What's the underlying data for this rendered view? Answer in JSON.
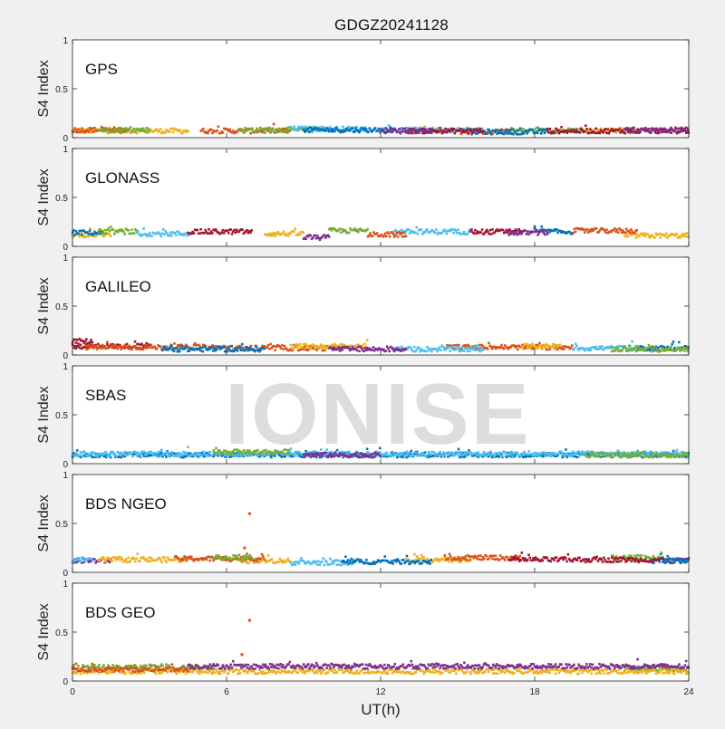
{
  "chart_data": {
    "type": "scatter",
    "title": "GDGZ20241128",
    "watermark": "IONISE",
    "xlabel": "UT(h)",
    "xlim": [
      0,
      24
    ],
    "xticks": [
      0,
      6,
      12,
      18,
      24
    ],
    "series_colors": [
      "#0072BD",
      "#D95319",
      "#EDB120",
      "#7E2F8E",
      "#77AC30",
      "#4DBEEE",
      "#A2142F"
    ],
    "panels": [
      {
        "label": "GPS",
        "ylabel": "S4 Index",
        "ylim": [
          0,
          1
        ],
        "yticks": [
          "0",
          "0.5",
          "1"
        ],
        "series": [
          {
            "color": "#EDB120",
            "segments": [
              {
                "x0": 0,
                "x1": 4.5,
                "base": 0.07
              },
              {
                "x0": 13.0,
                "x1": 14.5,
                "base": 0.07
              },
              {
                "x0": 20.0,
                "x1": 22.0,
                "base": 0.07
              }
            ]
          },
          {
            "color": "#D95319",
            "segments": [
              {
                "x0": 0,
                "x1": 2.2,
                "base": 0.08
              },
              {
                "x0": 5.0,
                "x1": 8.5,
                "base": 0.07
              },
              {
                "x0": 15.0,
                "x1": 17.0,
                "base": 0.06
              }
            ]
          },
          {
            "color": "#77AC30",
            "segments": [
              {
                "x0": 1.0,
                "x1": 3.0,
                "base": 0.08
              },
              {
                "x0": 6.5,
                "x1": 10.0,
                "base": 0.08
              },
              {
                "x0": 17.0,
                "x1": 20.0,
                "base": 0.07
              }
            ]
          },
          {
            "color": "#4DBEEE",
            "segments": [
              {
                "x0": 8.5,
                "x1": 11.5,
                "base": 0.09
              },
              {
                "x0": 12.0,
                "x1": 16.0,
                "base": 0.08
              }
            ]
          },
          {
            "color": "#0072BD",
            "segments": [
              {
                "x0": 9.0,
                "x1": 12.5,
                "base": 0.08
              },
              {
                "x0": 15.5,
                "x1": 18.5,
                "base": 0.06
              }
            ]
          },
          {
            "color": "#A2142F",
            "segments": [
              {
                "x0": 13.0,
                "x1": 16.0,
                "base": 0.07
              },
              {
                "x0": 18.5,
                "x1": 24,
                "base": 0.07
              }
            ]
          },
          {
            "color": "#7E2F8E",
            "segments": [
              {
                "x0": 12.0,
                "x1": 14.0,
                "base": 0.07
              },
              {
                "x0": 21.5,
                "x1": 24,
                "base": 0.08
              }
            ]
          }
        ]
      },
      {
        "label": "GLONASS",
        "ylabel": "S4 Index",
        "ylim": [
          0,
          1
        ],
        "yticks": [
          "0",
          "0.5",
          "1"
        ],
        "series": [
          {
            "color": "#EDB120",
            "segments": [
              {
                "x0": 0,
                "x1": 1.5,
                "base": 0.12
              },
              {
                "x0": 7.5,
                "x1": 9.0,
                "base": 0.13
              },
              {
                "x0": 21.5,
                "x1": 24,
                "base": 0.11
              }
            ]
          },
          {
            "color": "#0072BD",
            "segments": [
              {
                "x0": 0,
                "x1": 1.2,
                "base": 0.14
              },
              {
                "x0": 18.0,
                "x1": 19.5,
                "base": 0.15
              }
            ]
          },
          {
            "color": "#77AC30",
            "segments": [
              {
                "x0": 1.0,
                "x1": 2.5,
                "base": 0.15
              },
              {
                "x0": 10.0,
                "x1": 11.5,
                "base": 0.16
              }
            ]
          },
          {
            "color": "#4DBEEE",
            "segments": [
              {
                "x0": 2.5,
                "x1": 4.5,
                "base": 0.13
              },
              {
                "x0": 12.5,
                "x1": 15.5,
                "base": 0.15
              }
            ]
          },
          {
            "color": "#A2142F",
            "segments": [
              {
                "x0": 4.5,
                "x1": 7.0,
                "base": 0.15
              },
              {
                "x0": 15.5,
                "x1": 17.5,
                "base": 0.15
              }
            ]
          },
          {
            "color": "#7E2F8E",
            "segments": [
              {
                "x0": 9.0,
                "x1": 10.0,
                "base": 0.09
              },
              {
                "x0": 17.0,
                "x1": 18.5,
                "base": 0.14
              }
            ]
          },
          {
            "color": "#D95319",
            "segments": [
              {
                "x0": 11.5,
                "x1": 13.0,
                "base": 0.12
              },
              {
                "x0": 19.5,
                "x1": 22.0,
                "base": 0.16
              }
            ]
          }
        ]
      },
      {
        "label": "GALILEO",
        "ylabel": "S4 Index",
        "ylim": [
          0,
          1
        ],
        "yticks": [
          "0",
          "0.5",
          "1"
        ],
        "series": [
          {
            "color": "#A2142F",
            "segments": [
              {
                "x0": 0,
                "x1": 0.8,
                "base": 0.14
              },
              {
                "x0": 0,
                "x1": 3.0,
                "base": 0.09
              }
            ]
          },
          {
            "color": "#D95319",
            "segments": [
              {
                "x0": 0.5,
                "x1": 6.0,
                "base": 0.08
              },
              {
                "x0": 6.0,
                "x1": 10.5,
                "base": 0.07
              },
              {
                "x0": 14.5,
                "x1": 19.5,
                "base": 0.08
              }
            ]
          },
          {
            "color": "#EDB120",
            "segments": [
              {
                "x0": 8.5,
                "x1": 11.5,
                "base": 0.09
              },
              {
                "x0": 17.5,
                "x1": 19.0,
                "base": 0.09
              }
            ]
          },
          {
            "color": "#4DBEEE",
            "segments": [
              {
                "x0": 12.5,
                "x1": 16.0,
                "base": 0.06
              },
              {
                "x0": 19.5,
                "x1": 22.5,
                "base": 0.07
              }
            ]
          },
          {
            "color": "#0072BD",
            "segments": [
              {
                "x0": 3.5,
                "x1": 7.5,
                "base": 0.06
              },
              {
                "x0": 22.0,
                "x1": 24,
                "base": 0.07
              }
            ]
          },
          {
            "color": "#77AC30",
            "segments": [
              {
                "x0": 21.0,
                "x1": 24,
                "base": 0.06
              }
            ]
          },
          {
            "color": "#7E2F8E",
            "segments": [
              {
                "x0": 10.0,
                "x1": 13.0,
                "base": 0.06
              }
            ]
          }
        ]
      },
      {
        "label": "SBAS",
        "ylabel": "S4 Index",
        "ylim": [
          0,
          1
        ],
        "yticks": [
          "0",
          "0.5",
          "1"
        ],
        "series": [
          {
            "color": "#0072BD",
            "segments": [
              {
                "x0": 0,
                "x1": 24,
                "base": 0.09
              }
            ]
          },
          {
            "color": "#4DBEEE",
            "segments": [
              {
                "x0": 0,
                "x1": 24,
                "base": 0.1
              }
            ]
          },
          {
            "color": "#77AC30",
            "segments": [
              {
                "x0": 5.5,
                "x1": 8.5,
                "base": 0.12
              },
              {
                "x0": 20.0,
                "x1": 24,
                "base": 0.09
              }
            ]
          },
          {
            "color": "#7E2F8E",
            "segments": [
              {
                "x0": 9.0,
                "x1": 12.0,
                "base": 0.09
              }
            ]
          }
        ]
      },
      {
        "label": "BDS NGEO",
        "ylabel": "S4 Index",
        "ylim": [
          0,
          1
        ],
        "yticks": [
          "0",
          "0.5",
          "1"
        ],
        "series": [
          {
            "color": "#7E2F8E",
            "segments": [
              {
                "x0": 0,
                "x1": 1.5,
                "base": 0.12
              },
              {
                "x0": 23.0,
                "x1": 24,
                "base": 0.12
              }
            ]
          },
          {
            "color": "#EDB120",
            "segments": [
              {
                "x0": 1.0,
                "x1": 4.5,
                "base": 0.13
              },
              {
                "x0": 6.5,
                "x1": 8.5,
                "base": 0.12
              },
              {
                "x0": 13.0,
                "x1": 15.5,
                "base": 0.13
              }
            ]
          },
          {
            "color": "#D95319",
            "segments": [
              {
                "x0": 4.0,
                "x1": 7.5,
                "base": 0.14
              },
              {
                "x0": 14.5,
                "x1": 17.5,
                "base": 0.15
              }
            ]
          },
          {
            "color": "#4DBEEE",
            "segments": [
              {
                "x0": 8.5,
                "x1": 11.0,
                "base": 0.1
              },
              {
                "x0": 0,
                "x1": 0.8,
                "base": 0.13
              }
            ]
          },
          {
            "color": "#0072BD",
            "segments": [
              {
                "x0": 10.5,
                "x1": 14.0,
                "base": 0.11
              },
              {
                "x0": 22.5,
                "x1": 24,
                "base": 0.12
              }
            ]
          },
          {
            "color": "#77AC30",
            "segments": [
              {
                "x0": 5.5,
                "x1": 7.0,
                "base": 0.15
              },
              {
                "x0": 21.0,
                "x1": 23.0,
                "base": 0.15
              }
            ]
          },
          {
            "color": "#A2142F",
            "segments": [
              {
                "x0": 17.0,
                "x1": 23.0,
                "base": 0.13
              }
            ]
          }
        ],
        "outliers": [
          {
            "x": 6.9,
            "y": 0.6,
            "color": "#D95319"
          },
          {
            "x": 6.7,
            "y": 0.25,
            "color": "#D95319"
          }
        ]
      },
      {
        "label": "BDS GEO",
        "ylabel": "S4 Index",
        "ylim": [
          0,
          1
        ],
        "yticks": [
          "0",
          "0.5",
          "1"
        ],
        "series": [
          {
            "color": "#77AC30",
            "segments": [
              {
                "x0": 0,
                "x1": 5.5,
                "base": 0.14
              },
              {
                "x0": 21.5,
                "x1": 24,
                "base": 0.13
              }
            ]
          },
          {
            "color": "#EDB120",
            "segments": [
              {
                "x0": 0,
                "x1": 24,
                "base": 0.1
              }
            ]
          },
          {
            "color": "#7E2F8E",
            "segments": [
              {
                "x0": 4.5,
                "x1": 24,
                "base": 0.15
              }
            ]
          },
          {
            "color": "#D95319",
            "segments": [
              {
                "x0": 0,
                "x1": 4.5,
                "base": 0.12
              }
            ]
          }
        ],
        "outliers": [
          {
            "x": 6.9,
            "y": 0.62,
            "color": "#D95319"
          },
          {
            "x": 6.6,
            "y": 0.27,
            "color": "#D95319"
          }
        ]
      }
    ]
  }
}
